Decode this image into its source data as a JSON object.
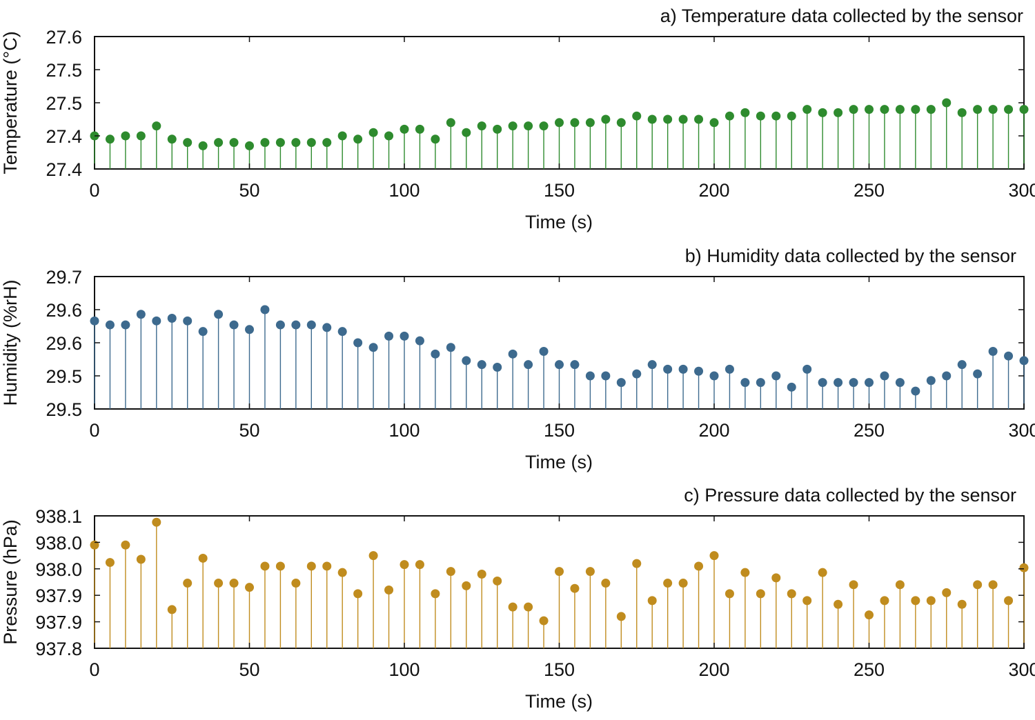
{
  "chart_data": [
    {
      "type": "scatter",
      "style": "stem",
      "title": "a) Temperature data collected by the sensor",
      "xlabel": "Time (s)",
      "ylabel": "Temperature (°C)",
      "xlim": [
        0,
        300
      ],
      "ylim": [
        27.35,
        27.55
      ],
      "xticks": [
        0,
        50,
        100,
        150,
        200,
        250,
        300
      ],
      "xtick_labels": [
        "0",
        "50",
        "100",
        "150",
        "200",
        "250",
        "300"
      ],
      "yticks": [
        27.35,
        27.4,
        27.45,
        27.5,
        27.55
      ],
      "ytick_labels": [
        "27.4",
        "27.4",
        "27.5",
        "27.5",
        "27.6"
      ],
      "grid": false,
      "color": "#2e8b2e",
      "series": [
        {
          "x": [
            0,
            5,
            10,
            15,
            20,
            25,
            30,
            35,
            40,
            45,
            50,
            55,
            60,
            65,
            70,
            75,
            80,
            85,
            90,
            95,
            100,
            105,
            110,
            115,
            120,
            125,
            130,
            135,
            140,
            145,
            150,
            155,
            160,
            165,
            170,
            175,
            180,
            185,
            190,
            195,
            200,
            205,
            210,
            215,
            220,
            225,
            230,
            235,
            240,
            245,
            250,
            255,
            260,
            265,
            270,
            275,
            280,
            285,
            290,
            295,
            300
          ],
          "values": [
            27.4,
            27.395,
            27.4,
            27.4,
            27.415,
            27.395,
            27.39,
            27.385,
            27.39,
            27.39,
            27.385,
            27.39,
            27.39,
            27.39,
            27.39,
            27.39,
            27.4,
            27.395,
            27.405,
            27.4,
            27.41,
            27.41,
            27.395,
            27.42,
            27.405,
            27.415,
            27.41,
            27.415,
            27.415,
            27.415,
            27.42,
            27.42,
            27.42,
            27.425,
            27.42,
            27.43,
            27.425,
            27.425,
            27.425,
            27.425,
            27.42,
            27.43,
            27.435,
            27.43,
            27.43,
            27.43,
            27.44,
            27.435,
            27.435,
            27.44,
            27.44,
            27.44,
            27.44,
            27.44,
            27.44,
            27.45,
            27.435,
            27.44,
            27.44,
            27.44,
            27.44
          ]
        }
      ]
    },
    {
      "type": "scatter",
      "style": "stem",
      "title": "b) Humidity data collected by the sensor",
      "xlabel": "Time (s)",
      "ylabel": "Humidity (%rH)",
      "xlim": [
        0,
        300
      ],
      "ylim": [
        29.5,
        29.7
      ],
      "xticks": [
        0,
        50,
        100,
        150,
        200,
        250,
        300
      ],
      "xtick_labels": [
        "0",
        "50",
        "100",
        "150",
        "200",
        "250",
        "300"
      ],
      "yticks": [
        29.5,
        29.55,
        29.6,
        29.65,
        29.7
      ],
      "ytick_labels": [
        "29.5",
        "29.5",
        "29.6",
        "29.6",
        "29.7"
      ],
      "grid": false,
      "color": "#3d6a8e",
      "series": [
        {
          "x": [
            0,
            5,
            10,
            15,
            20,
            25,
            30,
            35,
            40,
            45,
            50,
            55,
            60,
            65,
            70,
            75,
            80,
            85,
            90,
            95,
            100,
            105,
            110,
            115,
            120,
            125,
            130,
            135,
            140,
            145,
            150,
            155,
            160,
            165,
            170,
            175,
            180,
            185,
            190,
            195,
            200,
            205,
            210,
            215,
            220,
            225,
            230,
            235,
            240,
            245,
            250,
            255,
            260,
            265,
            270,
            275,
            280,
            285,
            290,
            295,
            300
          ],
          "values": [
            29.633,
            29.627,
            29.627,
            29.643,
            29.633,
            29.637,
            29.633,
            29.617,
            29.643,
            29.627,
            29.62,
            29.65,
            29.627,
            29.627,
            29.627,
            29.623,
            29.617,
            29.6,
            29.593,
            29.61,
            29.61,
            29.603,
            29.583,
            29.593,
            29.573,
            29.567,
            29.563,
            29.583,
            29.567,
            29.587,
            29.567,
            29.567,
            29.55,
            29.55,
            29.54,
            29.553,
            29.567,
            29.56,
            29.56,
            29.557,
            29.55,
            29.56,
            29.54,
            29.54,
            29.55,
            29.533,
            29.56,
            29.54,
            29.54,
            29.54,
            29.54,
            29.55,
            29.54,
            29.527,
            29.543,
            29.55,
            29.567,
            29.553,
            29.587,
            29.58,
            29.573
          ]
        }
      ]
    },
    {
      "type": "scatter",
      "style": "stem",
      "title": "c) Pressure data collected by the sensor",
      "xlabel": "Time (s)",
      "ylabel": "Pressure (hPa)",
      "xlim": [
        0,
        300
      ],
      "ylim": [
        937.8,
        938.05
      ],
      "xticks": [
        0,
        50,
        100,
        150,
        200,
        250,
        300
      ],
      "xtick_labels": [
        "0",
        "50",
        "100",
        "150",
        "200",
        "250",
        "300"
      ],
      "yticks": [
        937.8,
        937.85,
        937.9,
        937.95,
        938.0,
        938.05
      ],
      "ytick_labels": [
        "937.8",
        "937.9",
        "937.9",
        "938.0",
        "938.0",
        "938.1"
      ],
      "grid": false,
      "color": "#c08c1e",
      "series": [
        {
          "x": [
            0,
            5,
            10,
            15,
            20,
            25,
            30,
            35,
            40,
            45,
            50,
            55,
            60,
            65,
            70,
            75,
            80,
            85,
            90,
            95,
            100,
            105,
            110,
            115,
            120,
            125,
            130,
            135,
            140,
            145,
            150,
            155,
            160,
            165,
            170,
            175,
            180,
            185,
            190,
            195,
            200,
            205,
            210,
            215,
            220,
            225,
            230,
            235,
            240,
            245,
            250,
            255,
            260,
            265,
            270,
            275,
            280,
            285,
            290,
            295,
            300
          ],
          "values": [
            937.995,
            937.962,
            937.995,
            937.968,
            938.038,
            937.873,
            937.923,
            937.97,
            937.923,
            937.923,
            937.915,
            937.955,
            937.955,
            937.923,
            937.955,
            937.955,
            937.943,
            937.903,
            937.975,
            937.91,
            937.958,
            937.958,
            937.903,
            937.945,
            937.918,
            937.94,
            937.927,
            937.878,
            937.878,
            937.852,
            937.945,
            937.913,
            937.945,
            937.923,
            937.86,
            937.96,
            937.89,
            937.923,
            937.923,
            937.955,
            937.975,
            937.903,
            937.943,
            937.903,
            937.933,
            937.903,
            937.89,
            937.943,
            937.883,
            937.92,
            937.863,
            937.89,
            937.92,
            937.89,
            937.89,
            937.905,
            937.883,
            937.92,
            937.92,
            937.89,
            937.952
          ]
        }
      ]
    }
  ]
}
